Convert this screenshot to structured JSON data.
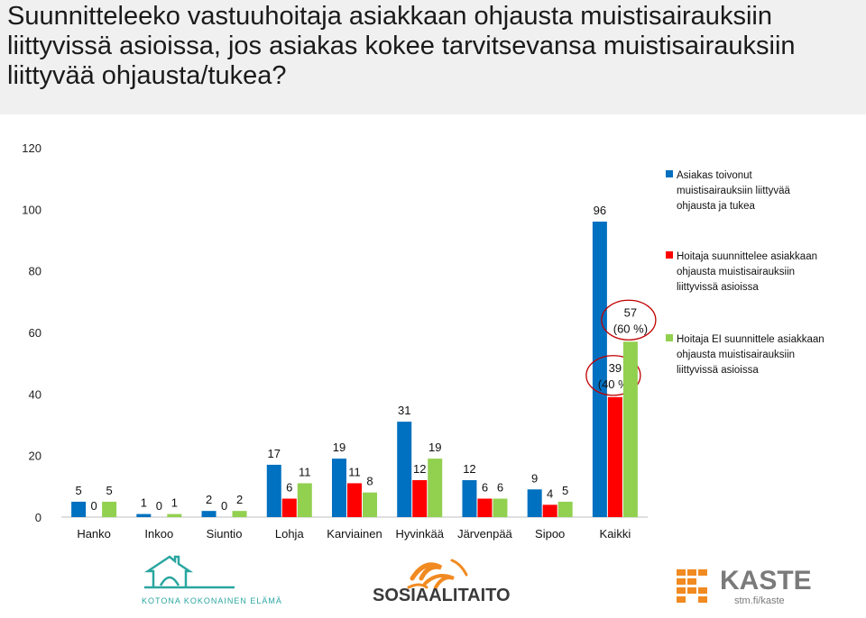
{
  "title": "Suunnitteleeko vastuuhoitaja asiakkaan ohjausta muistisairauksiin liittyvissä asioissa, jos asiakas kokee tarvitsevansa muistisairauksiin liittyvää ohjausta/tukea?",
  "chart_data": {
    "type": "bar",
    "categories": [
      "Hanko",
      "Inkoo",
      "Siuntio",
      "Lohja",
      "Karviainen",
      "Hyvinkää",
      "Järvenpää",
      "Sipoo",
      "Kaikki"
    ],
    "series": [
      {
        "name": "Asiakas toivonut muistisairauksiin liittyvää ohjausta ja tukea",
        "color": "#0070c0",
        "values": [
          5,
          1,
          2,
          17,
          19,
          31,
          12,
          9,
          96
        ],
        "labels": [
          "5",
          "1",
          "2",
          "17",
          "19",
          "31",
          "12",
          "9",
          "96"
        ]
      },
      {
        "name": "Hoitaja suunnittelee asiakkaan ohjausta muistisairauksiin liittyvissä asioissa",
        "color": "#ff0000",
        "values": [
          0,
          0,
          0,
          6,
          11,
          12,
          6,
          4,
          39
        ],
        "labels": [
          "0",
          "0",
          "0",
          "6",
          "11",
          "12",
          "6",
          "4",
          "39\n(40 %)"
        ]
      },
      {
        "name": "Hoitaja EI suunnittele asiakkaan ohjausta muistisairauksiin liittyvissä asioissa",
        "color": "#92d050",
        "values": [
          5,
          1,
          2,
          11,
          8,
          19,
          6,
          5,
          57
        ],
        "labels": [
          "5",
          "1",
          "2",
          "11",
          "8",
          "19",
          "6",
          "5",
          "57\n(60 %)"
        ]
      }
    ],
    "ylim": [
      0,
      120
    ],
    "yticks": [
      0,
      20,
      40,
      60,
      80,
      100,
      120
    ],
    "grid": false,
    "legend_position": "right",
    "annotation_color": "#c00000"
  },
  "footer": {
    "logo_left_text": "KOTONA KOKONAINEN ELÄMÄ",
    "logo_center_text": "SOSIAALITAITO",
    "logo_right_text": "KASTE",
    "logo_right_subtext": "stm.fi/kaste"
  }
}
